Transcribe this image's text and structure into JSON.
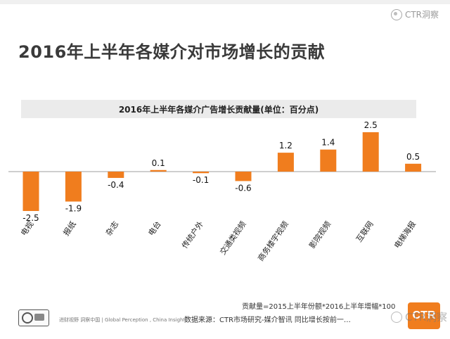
{
  "slide": {
    "title": "2016年上半年各媒介对市场增长的贡献",
    "watermark": "CTR洞察"
  },
  "footer": {
    "formula": "贡献量=2015上半年份额*2016上半年增幅*100",
    "source": "数据来源：CTR市场研究-媒介智讯  同比增长按前一…",
    "tagline": "进财视野  洞察中国  |  Global Perception , China Insight",
    "brand": "CTR",
    "wechat": "CTR洞察"
  },
  "colors": {
    "bar": "#f07d1e",
    "axis": "#9e9e9e",
    "band": "#ebebeb"
  },
  "chart_data": {
    "type": "bar",
    "title": "2016年上半年各媒介广告增长贡献量(单位：百分点)",
    "categories": [
      "电视",
      "报纸",
      "杂志",
      "电台",
      "传统户外",
      "交通类视频",
      "商务楼宇视频",
      "影院视频",
      "互联网",
      "电梯海报"
    ],
    "values": [
      -2.5,
      -1.9,
      -0.4,
      0.1,
      -0.1,
      -0.6,
      1.2,
      1.4,
      2.5,
      0.5
    ],
    "labels": [
      "-2.5",
      "-1.9",
      "-0.4",
      "0.1",
      "-0.1",
      "-0.6",
      "1.2",
      "1.4",
      "2.5",
      "0.5"
    ],
    "xlabel": "",
    "ylabel": "百分点",
    "ylim": [
      -2.6,
      2.6
    ],
    "grid": false,
    "legend": "none"
  }
}
